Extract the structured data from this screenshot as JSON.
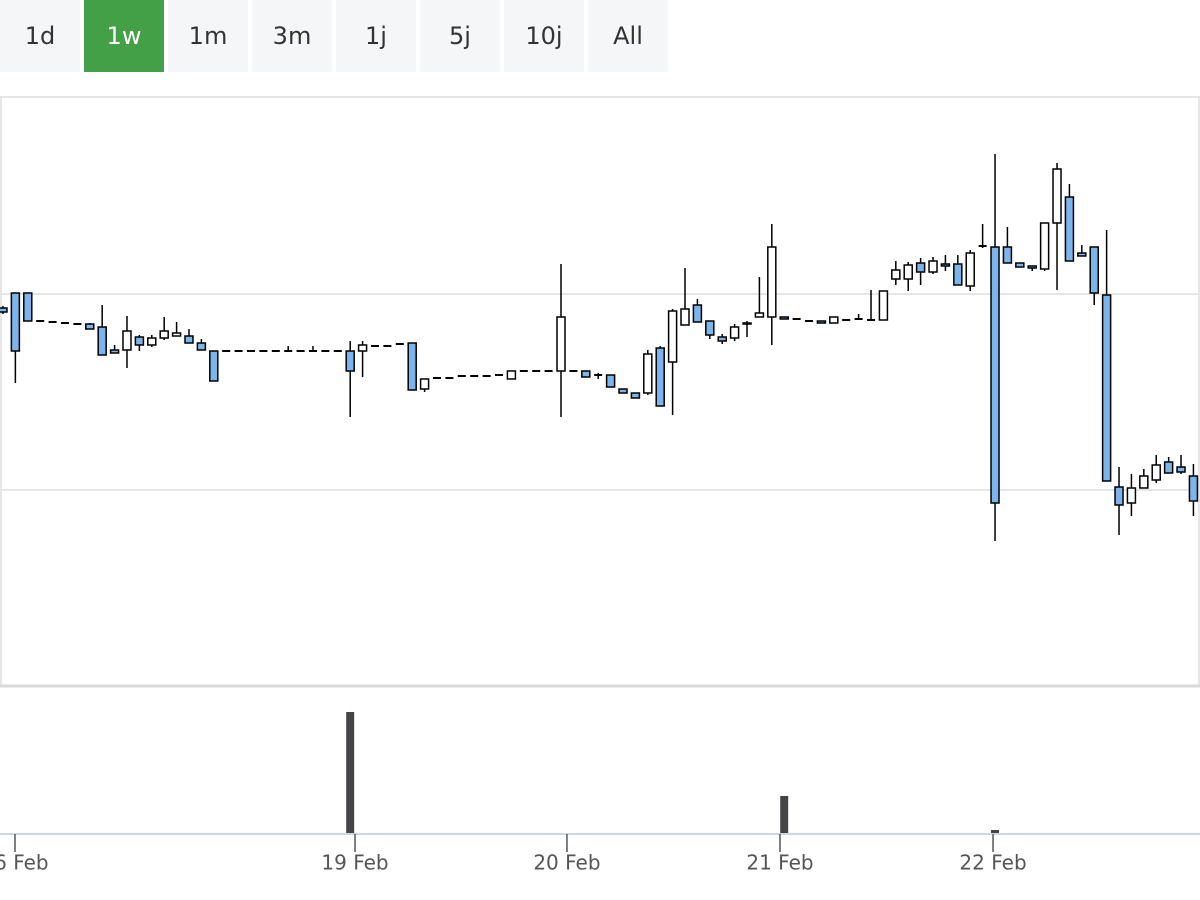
{
  "range_selector": {
    "buttons": [
      "1d",
      "1w",
      "1m",
      "3m",
      "1j",
      "5j",
      "10j",
      "All"
    ],
    "selected": 1
  },
  "chart_data": {
    "type": "candlestick",
    "x": [
      0,
      1,
      2,
      3,
      4,
      5,
      6,
      7,
      8,
      9,
      10,
      11,
      12,
      13,
      14,
      15,
      16,
      17,
      18,
      19,
      20,
      21,
      22,
      23,
      24,
      25,
      26,
      27,
      28,
      29,
      30,
      31,
      32,
      33,
      34,
      35,
      36,
      37,
      38,
      39,
      40,
      41,
      42,
      43,
      44,
      45,
      46,
      47,
      48,
      49,
      50,
      51,
      52,
      53,
      54,
      55,
      56,
      57,
      58,
      59,
      60,
      61,
      62,
      63,
      64,
      65,
      66,
      67,
      68,
      69,
      70,
      71,
      72,
      73,
      74,
      75,
      76,
      77,
      78,
      79,
      80,
      81,
      82,
      83,
      84,
      85,
      86,
      87,
      88,
      89,
      90,
      91,
      92,
      93,
      94,
      95,
      96
    ],
    "open": [
      378,
      393,
      393,
      365,
      364,
      363,
      362,
      362,
      359,
      336,
      336,
      349,
      341,
      348,
      350,
      350,
      343,
      335,
      335,
      335,
      335,
      335,
      335,
      335,
      335,
      335,
      335,
      335,
      335,
      335,
      340,
      340,
      342,
      343,
      297,
      308,
      308,
      310,
      310,
      310,
      311,
      307,
      315,
      315,
      315,
      315,
      315,
      315,
      311,
      311,
      297,
      293,
      293,
      338,
      324,
      361,
      381,
      365,
      349,
      348,
      362,
      369,
      369,
      369,
      367,
      365,
      365,
      363,
      366,
      367,
      366,
      366,
      407,
      407,
      423,
      414,
      422,
      422,
      400,
      440,
      439,
      439,
      423,
      420,
      417,
      463,
      489,
      433,
      439,
      391,
      199,
      183,
      198,
      206,
      224,
      219,
      210
    ],
    "high": [
      380,
      393,
      393,
      366,
      364,
      363,
      362,
      363,
      381,
      341,
      370,
      351,
      351,
      369,
      364,
      357,
      347,
      335,
      335,
      335,
      335,
      335,
      335,
      340,
      335,
      340,
      335,
      335,
      345,
      345,
      340,
      341,
      342,
      343,
      307,
      308,
      308,
      310,
      310,
      310,
      311,
      315,
      315,
      315,
      315,
      422,
      315,
      315,
      313,
      311,
      297,
      293,
      336,
      340,
      377,
      418,
      387,
      365,
      352,
      362,
      365,
      409,
      462,
      369,
      367,
      365,
      365,
      369,
      366,
      372,
      396,
      395,
      425,
      424,
      428,
      429,
      431,
      431,
      436,
      462,
      532,
      459,
      423,
      420,
      463,
      523,
      502,
      441,
      439,
      456,
      219,
      212,
      217,
      231,
      229,
      231,
      222
    ],
    "low": [
      372,
      303,
      365,
      364,
      364,
      363,
      362,
      357,
      331,
      333,
      318,
      335,
      339,
      346,
      350,
      343,
      336,
      305,
      335,
      335,
      335,
      335,
      335,
      335,
      335,
      335,
      335,
      335,
      269,
      309,
      340,
      340,
      342,
      296,
      294,
      308,
      308,
      310,
      310,
      310,
      311,
      307,
      315,
      315,
      315,
      269,
      315,
      309,
      307,
      299,
      293,
      288,
      291,
      280,
      271,
      361,
      364,
      347,
      342,
      345,
      349,
      369,
      341,
      367,
      367,
      365,
      363,
      363,
      366,
      367,
      366,
      366,
      401,
      395,
      401,
      412,
      415,
      401,
      395,
      438,
      145,
      423,
      419,
      415,
      415,
      396,
      425,
      430,
      381,
      205,
      151,
      170,
      198,
      203,
      213,
      212,
      170
    ],
    "close": [
      374,
      335,
      365,
      365,
      364,
      363,
      362,
      357,
      331,
      333,
      355,
      341,
      348,
      355,
      353,
      343,
      336,
      305,
      335,
      335,
      335,
      335,
      335,
      335,
      335,
      335,
      335,
      335,
      315,
      341,
      340,
      340,
      342,
      296,
      307,
      308,
      308,
      310,
      310,
      310,
      311,
      315,
      315,
      315,
      315,
      369,
      315,
      309,
      311,
      299,
      293,
      288,
      332,
      280,
      375,
      377,
      364,
      351,
      345,
      359,
      363,
      373,
      439,
      367,
      367,
      365,
      363,
      369,
      366,
      367,
      366,
      395,
      416,
      421,
      414,
      425,
      420,
      401,
      433,
      440,
      183,
      423,
      419,
      418,
      463,
      517,
      425,
      430,
      393,
      205,
      181,
      198,
      210,
      221,
      213,
      214,
      185
    ],
    "up_color": "#ffffff",
    "down_color": "#7cb5ec",
    "xlim": [
      -0.24,
      96.53
    ],
    "xticks": [
      {
        "value": 0.97,
        "label": "16 Feb"
      },
      {
        "value": 28.39,
        "label": "19 Feb"
      },
      {
        "value": 45.48,
        "label": "20 Feb"
      },
      {
        "value": 62.66,
        "label": "21 Feb"
      },
      {
        "value": 79.84,
        "label": "22 Feb"
      }
    ],
    "ylim": [
      0,
      588
    ],
    "ygrid": [
      196,
      392
    ],
    "volume": {
      "type": "bar",
      "x": [
        28,
        63,
        80
      ],
      "values": [
        121,
        37,
        3
      ],
      "ylim": [
        0,
        143
      ],
      "color": "#434348"
    }
  }
}
